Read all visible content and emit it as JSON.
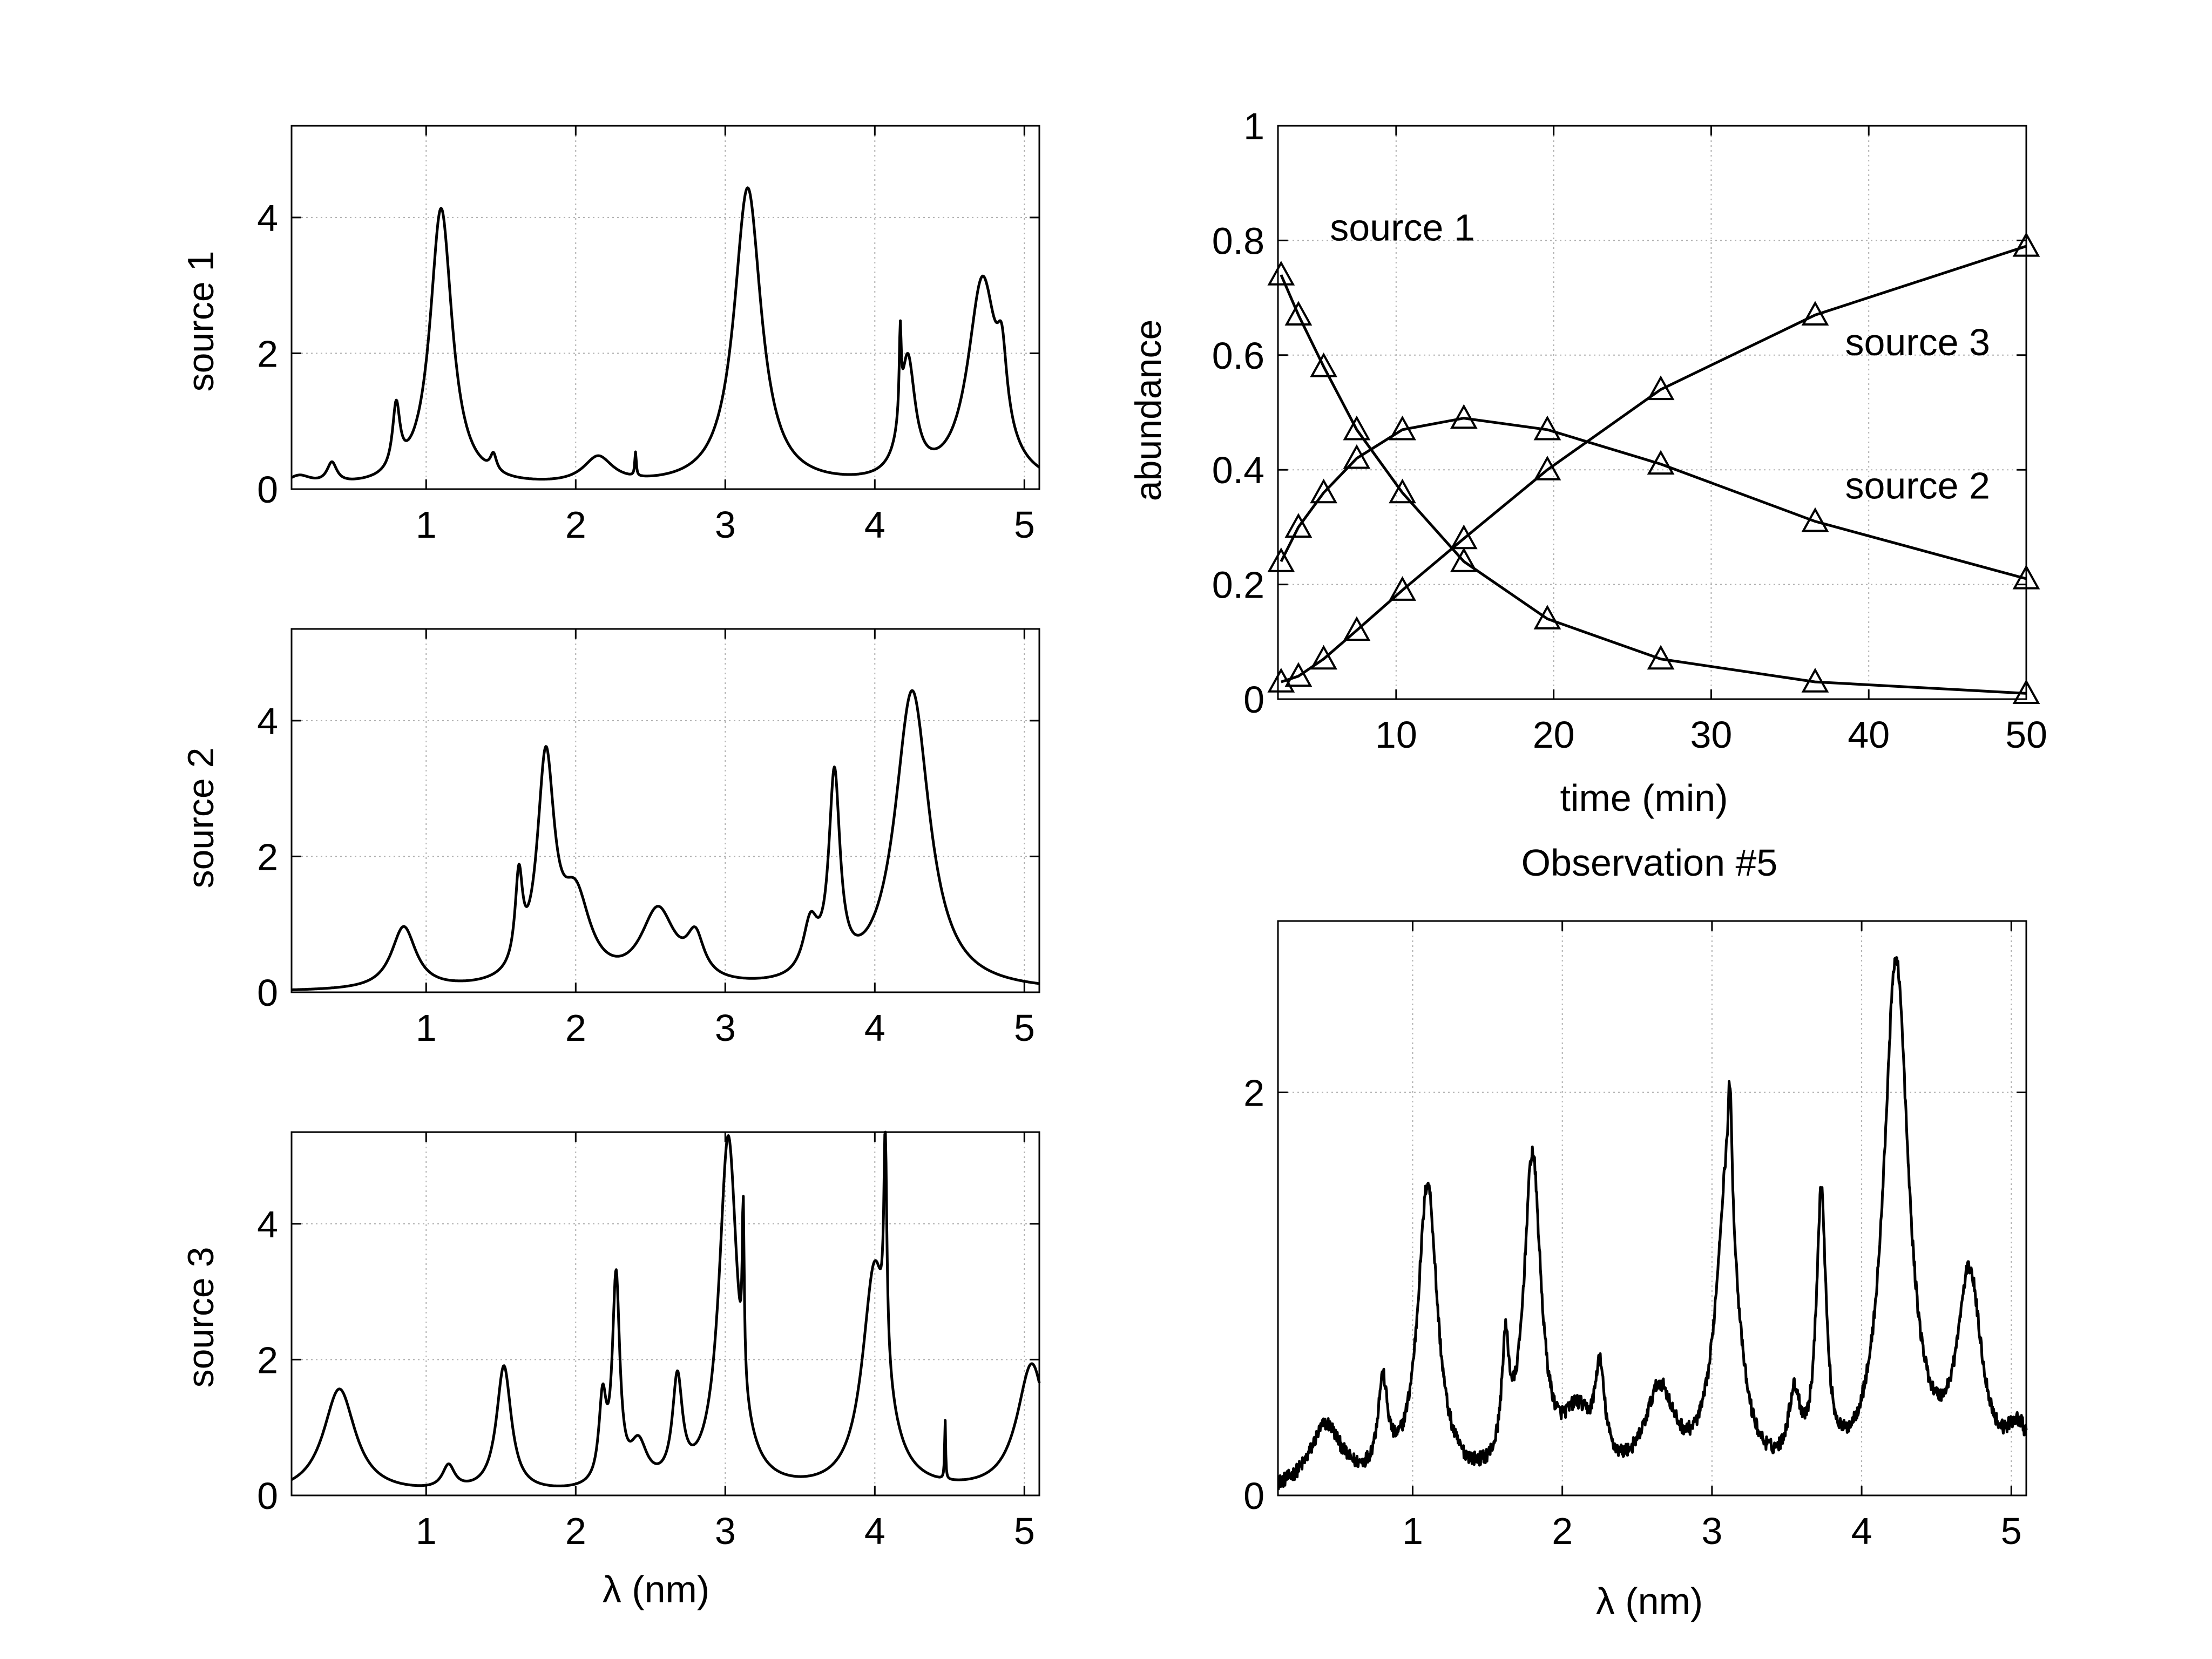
{
  "figure": {
    "observation_title": "Observation #5",
    "wavelength_label": "λ (nm)"
  },
  "colors": {
    "line": "#000000",
    "grid": "#b0b0b0",
    "background": "#ffffff"
  },
  "chart_data": [
    {
      "id": "source1",
      "type": "line",
      "ylabel": "source 1",
      "xlabel": "",
      "xlim": [
        0.1,
        5.1
      ],
      "ylim": [
        0,
        5.35
      ],
      "xticks": [
        1,
        2,
        3,
        4,
        5
      ],
      "yticks": [
        0,
        2,
        4
      ],
      "grid": true,
      "peaks": [
        [
          0.15,
          0.15,
          0.1
        ],
        [
          0.37,
          0.3,
          0.04
        ],
        [
          0.8,
          0.95,
          0.03
        ],
        [
          1.1,
          4.1,
          0.09
        ],
        [
          1.45,
          0.25,
          0.025
        ],
        [
          2.15,
          0.4,
          0.12
        ],
        [
          2.4,
          0.35,
          0.006
        ],
        [
          3.15,
          4.4,
          0.11
        ],
        [
          4.17,
          1.25,
          0.008
        ],
        [
          4.22,
          1.75,
          0.06
        ],
        [
          4.72,
          3.0,
          0.12
        ],
        [
          4.85,
          1.0,
          0.04
        ]
      ]
    },
    {
      "id": "source2",
      "type": "line",
      "ylabel": "source 2",
      "xlabel": "",
      "xlim": [
        0.1,
        5.1
      ],
      "ylim": [
        0,
        5.35
      ],
      "xticks": [
        1,
        2,
        3,
        4,
        5
      ],
      "yticks": [
        0,
        2,
        4
      ],
      "grid": true,
      "peaks": [
        [
          0.85,
          0.92,
          0.1
        ],
        [
          1.62,
          1.3,
          0.03
        ],
        [
          1.8,
          3.2,
          0.07
        ],
        [
          2.0,
          1.2,
          0.12
        ],
        [
          2.55,
          1.1,
          0.14
        ],
        [
          2.8,
          0.6,
          0.07
        ],
        [
          3.57,
          0.75,
          0.06
        ],
        [
          3.73,
          2.9,
          0.045
        ],
        [
          4.25,
          4.4,
          0.14
        ]
      ]
    },
    {
      "id": "source3",
      "type": "line",
      "ylabel": "source 3",
      "xlabel": "λ (nm)",
      "xlim": [
        0.1,
        5.1
      ],
      "ylim": [
        0,
        5.35
      ],
      "xticks": [
        1,
        2,
        3,
        4,
        5
      ],
      "yticks": [
        0,
        2,
        4
      ],
      "grid": true,
      "peaks": [
        [
          0.42,
          1.55,
          0.13
        ],
        [
          1.15,
          0.35,
          0.05
        ],
        [
          1.52,
          1.85,
          0.06
        ],
        [
          2.18,
          1.2,
          0.03
        ],
        [
          2.27,
          3.0,
          0.03
        ],
        [
          2.42,
          0.6,
          0.07
        ],
        [
          2.68,
          1.5,
          0.04
        ],
        [
          3.02,
          5.2,
          0.075
        ],
        [
          3.12,
          2.5,
          0.008
        ],
        [
          4.0,
          3.3,
          0.1
        ],
        [
          4.07,
          3.2,
          0.012
        ],
        [
          4.47,
          0.9,
          0.004
        ],
        [
          5.05,
          1.9,
          0.12
        ]
      ]
    },
    {
      "id": "abundance",
      "type": "line",
      "xlabel": "time (min)",
      "ylabel": "abundance",
      "xlim": [
        2.5,
        50
      ],
      "ylim": [
        0,
        1
      ],
      "xticks": [
        10,
        20,
        30,
        40,
        50
      ],
      "yticks": [
        0,
        0.2,
        0.4,
        0.6,
        0.8,
        1
      ],
      "ytick_labels": [
        "0",
        "0.2",
        "0.4",
        "0.6",
        "0.8",
        "1"
      ],
      "grid": true,
      "marker": "triangle",
      "x": [
        2.7,
        3.8,
        5.4,
        7.5,
        10.4,
        14.3,
        19.6,
        26.8,
        36.6,
        50
      ],
      "series": [
        {
          "name": "source 1",
          "values": [
            0.74,
            0.67,
            0.58,
            0.47,
            0.36,
            0.24,
            0.14,
            0.07,
            0.03,
            0.01
          ]
        },
        {
          "name": "source 2",
          "values": [
            0.24,
            0.3,
            0.36,
            0.42,
            0.47,
            0.49,
            0.47,
            0.41,
            0.31,
            0.21
          ]
        },
        {
          "name": "source 3",
          "values": [
            0.03,
            0.04,
            0.07,
            0.12,
            0.19,
            0.28,
            0.4,
            0.54,
            0.67,
            0.79
          ]
        }
      ],
      "annotations": [
        {
          "text": "source 1",
          "x": 5.8,
          "y": 0.8
        },
        {
          "text": "source 3",
          "x": 38.5,
          "y": 0.6
        },
        {
          "text": "source 2",
          "x": 38.5,
          "y": 0.35
        }
      ]
    },
    {
      "id": "observation",
      "type": "line",
      "title": "Observation #5",
      "xlabel": "λ (nm)",
      "ylabel": "",
      "xlim": [
        0.1,
        5.1
      ],
      "ylim": [
        0,
        2.85
      ],
      "xticks": [
        1,
        2,
        3,
        4,
        5
      ],
      "yticks": [
        0,
        2
      ],
      "grid": true,
      "noise": 0.035,
      "peaks": [
        [
          0.42,
          0.32,
          0.13
        ],
        [
          0.8,
          0.45,
          0.04
        ],
        [
          1.1,
          1.5,
          0.08
        ],
        [
          1.62,
          0.55,
          0.03
        ],
        [
          1.8,
          1.6,
          0.07
        ],
        [
          2.25,
          0.45,
          0.04
        ],
        [
          2.1,
          0.3,
          0.12
        ],
        [
          2.65,
          0.45,
          0.12
        ],
        [
          3.1,
          1.5,
          0.09
        ],
        [
          3.12,
          0.55,
          0.015
        ],
        [
          3.55,
          0.35,
          0.05
        ],
        [
          3.73,
          1.35,
          0.04
        ],
        [
          4.23,
          2.6,
          0.1
        ],
        [
          4.72,
          1.0,
          0.1
        ],
        [
          5.05,
          0.25,
          0.1
        ]
      ]
    }
  ]
}
